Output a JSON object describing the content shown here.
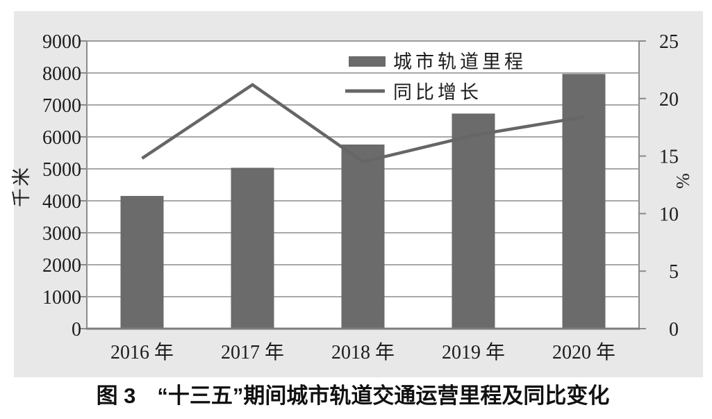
{
  "figure": {
    "caption": "图 3　“十三五”期间城市轨道交通运营里程及同比变化"
  },
  "chart_data": {
    "type": "bar",
    "subtype": "combo bar + line, dual y-axis",
    "categories": [
      "2016 年",
      "2017 年",
      "2018 年",
      "2019 年",
      "2020 年"
    ],
    "series": [
      {
        "name": "城市轨道里程",
        "type": "bar",
        "axis": "left",
        "unit": "千米",
        "values": [
          4153,
          5033,
          5761,
          6730,
          7970
        ]
      },
      {
        "name": "同比增长",
        "type": "line",
        "axis": "right",
        "unit": "%",
        "values": [
          14.8,
          21.2,
          14.5,
          16.8,
          18.4
        ]
      }
    ],
    "left_axis": {
      "label": "千米",
      "min": 0,
      "max": 9000,
      "step": 1000
    },
    "right_axis": {
      "label": "%",
      "min": 0,
      "max": 25,
      "step": 5
    },
    "legend": {
      "position": "top-center-inside",
      "entries": [
        "城市轨道里程",
        "同比增长"
      ]
    },
    "grid": true,
    "colors": {
      "bar": "#6b6b6b",
      "line": "#666666",
      "grid": "#9c9c9c",
      "frame": "#8a8a8a",
      "text": "#1c1c1c",
      "panel_bg": "#e8e8e8",
      "plot_bg": "#ffffff",
      "page_bg": "#ffffff"
    }
  }
}
